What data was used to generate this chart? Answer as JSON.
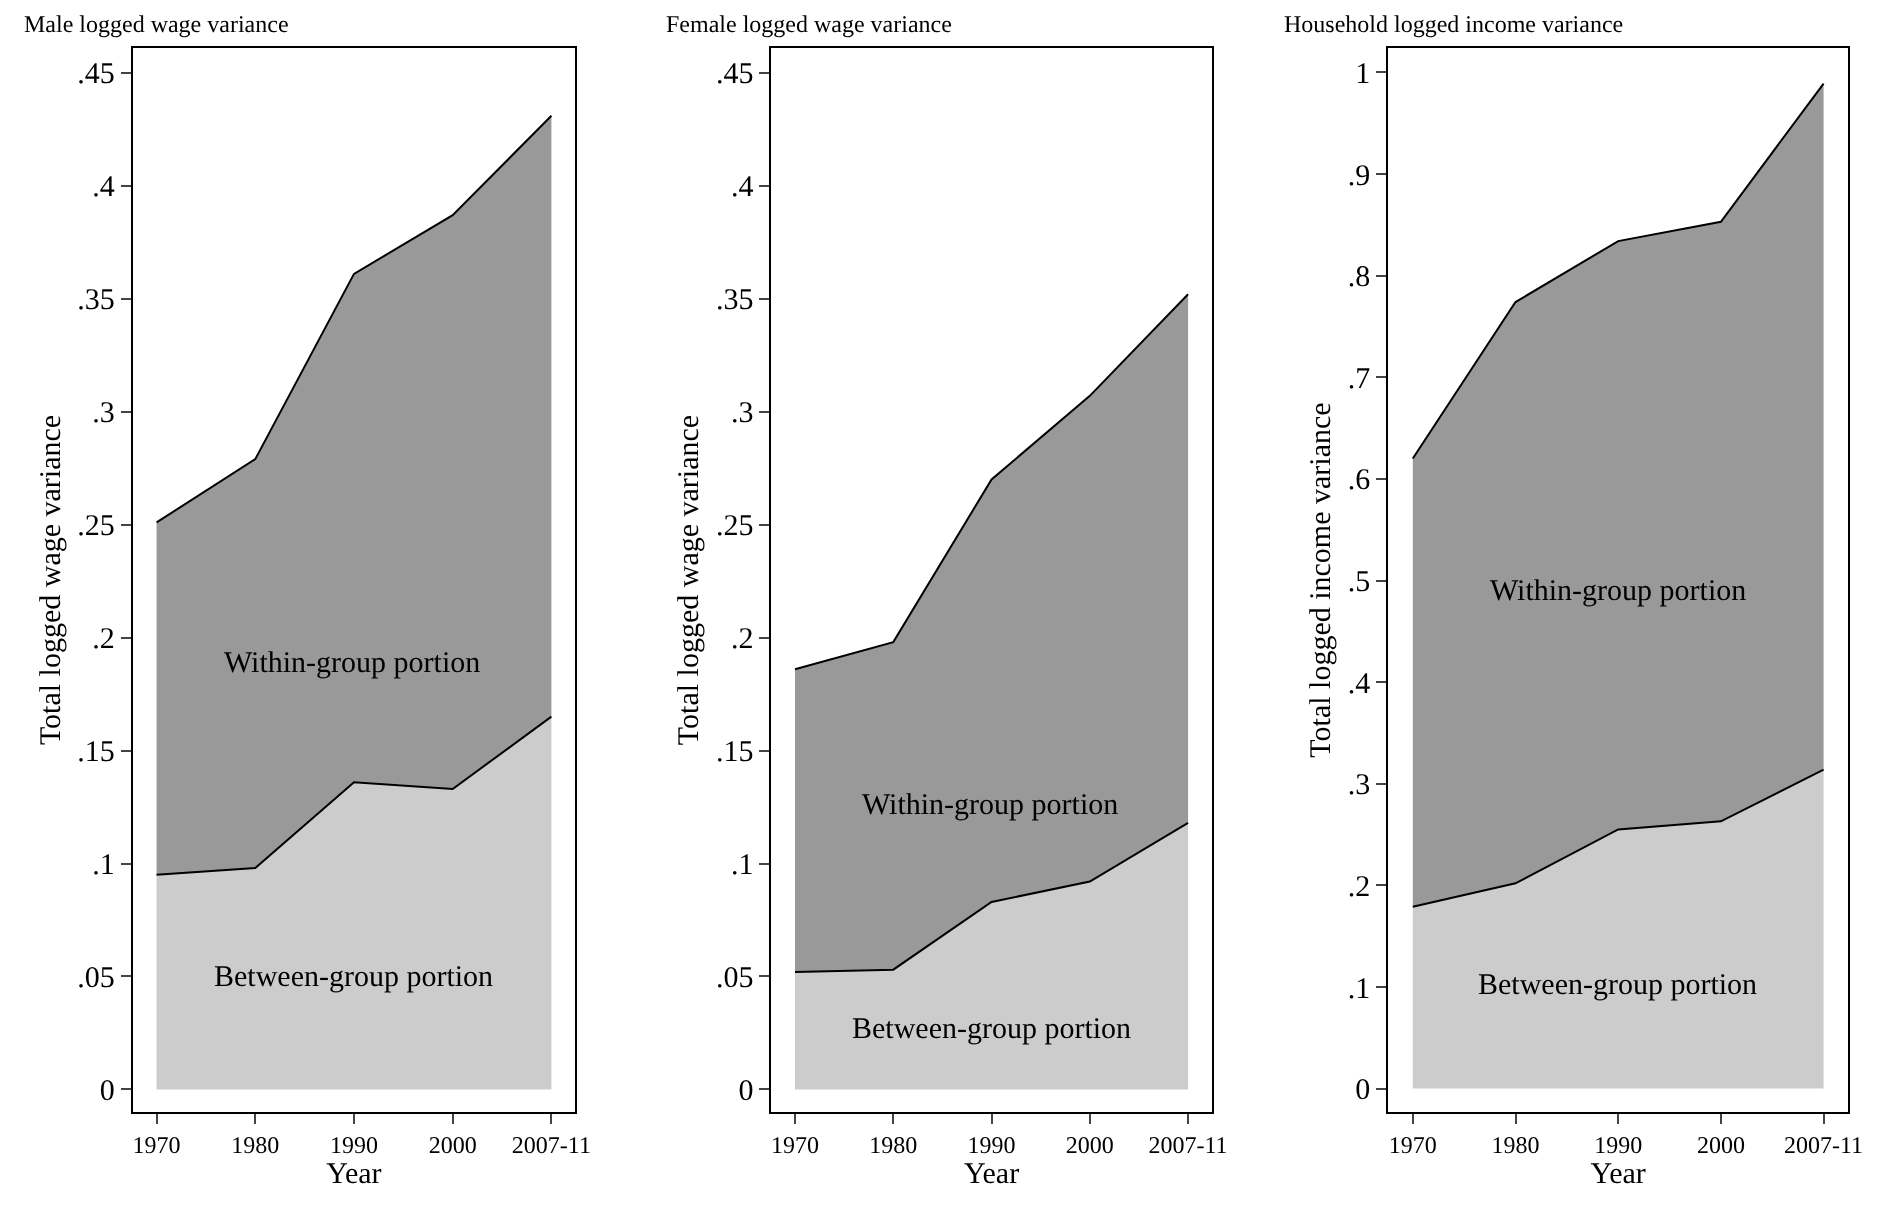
{
  "chart_data": [
    {
      "type": "area",
      "stacked": true,
      "title": "Male logged wage variance",
      "xlabel": "Year",
      "ylabel": "Total logged wage variance",
      "categories": [
        "1970",
        "1980",
        "1990",
        "2000",
        "2007-11"
      ],
      "series": [
        {
          "name": "Between-group portion",
          "color": "#cccccc",
          "values": [
            0.095,
            0.098,
            0.136,
            0.133,
            0.165
          ]
        },
        {
          "name": "Within-group portion",
          "color": "#999999",
          "values": [
            0.156,
            0.181,
            0.225,
            0.254,
            0.266
          ]
        }
      ],
      "ylim": [
        -0.01,
        0.461
      ],
      "yticks": [
        0,
        {
          "value": 0.05,
          "label": ".05"
        },
        {
          "value": 0.1,
          "label": ".1"
        },
        {
          "value": 0.15,
          "label": ".15"
        },
        {
          "value": 0.2,
          "label": ".2"
        },
        {
          "value": 0.25,
          "label": ".25"
        },
        {
          "value": 0.3,
          "label": ".3"
        },
        {
          "value": 0.35,
          "label": ".35"
        },
        {
          "value": 0.4,
          "label": ".4"
        },
        {
          "value": 0.45,
          "label": ".45"
        }
      ],
      "grid": false,
      "legend": false
    },
    {
      "type": "area",
      "stacked": true,
      "title": "Female logged wage variance",
      "xlabel": "Year",
      "ylabel": "Total logged wage variance",
      "categories": [
        "1970",
        "1980",
        "1990",
        "2000",
        "2007-11"
      ],
      "series": [
        {
          "name": "Between-group portion",
          "color": "#cccccc",
          "values": [
            0.052,
            0.053,
            0.083,
            0.092,
            0.118
          ]
        },
        {
          "name": "Within-group portion",
          "color": "#999999",
          "values": [
            0.134,
            0.145,
            0.187,
            0.215,
            0.234
          ]
        }
      ],
      "ylim": [
        -0.01,
        0.461
      ],
      "yticks": [
        0,
        {
          "value": 0.05,
          "label": ".05"
        },
        {
          "value": 0.1,
          "label": ".1"
        },
        {
          "value": 0.15,
          "label": ".15"
        },
        {
          "value": 0.2,
          "label": ".2"
        },
        {
          "value": 0.25,
          "label": ".25"
        },
        {
          "value": 0.3,
          "label": ".3"
        },
        {
          "value": 0.35,
          "label": ".35"
        },
        {
          "value": 0.4,
          "label": ".4"
        },
        {
          "value": 0.45,
          "label": ".45"
        }
      ],
      "grid": false,
      "legend": false
    },
    {
      "type": "area",
      "stacked": true,
      "title": "Household logged income variance",
      "xlabel": "Year",
      "ylabel": "Total logged income variance",
      "categories": [
        "1970",
        "1980",
        "1990",
        "2000",
        "2007-11"
      ],
      "series": [
        {
          "name": "Between-group portion",
          "color": "#cccccc",
          "values": [
            0.179,
            0.202,
            0.255,
            0.263,
            0.314
          ]
        },
        {
          "name": "Within-group portion",
          "color": "#999999",
          "values": [
            0.441,
            0.572,
            0.579,
            0.59,
            0.675
          ]
        }
      ],
      "ylim": [
        -0.023,
        1.024
      ],
      "yticks": [
        0,
        {
          "value": 0.1,
          "label": ".1"
        },
        {
          "value": 0.2,
          "label": ".2"
        },
        {
          "value": 0.3,
          "label": ".3"
        },
        {
          "value": 0.4,
          "label": ".4"
        },
        {
          "value": 0.5,
          "label": ".5"
        },
        {
          "value": 0.6,
          "label": ".6"
        },
        {
          "value": 0.7,
          "label": ".7"
        },
        {
          "value": 0.8,
          "label": ".8"
        },
        {
          "value": 0.9,
          "label": ".9"
        },
        1
      ],
      "grid": false,
      "legend": false
    }
  ]
}
